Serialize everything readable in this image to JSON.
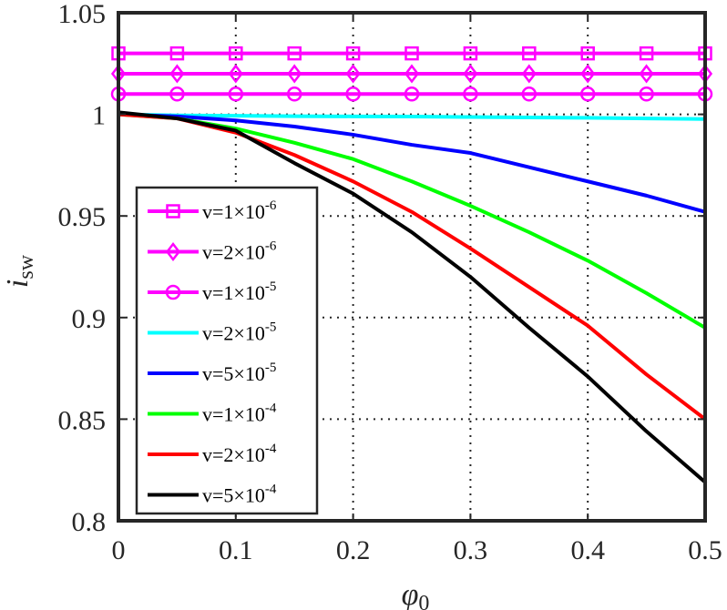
{
  "chart_data": {
    "type": "line",
    "title": "",
    "xlabel": "φ",
    "xlabel_sub": "0",
    "ylabel": "i",
    "ylabel_sub": "sw",
    "xlim": [
      0,
      0.5
    ],
    "ylim": [
      0.8,
      1.05
    ],
    "grid": true,
    "legend_position": "lower-left",
    "x_ticks": [
      0,
      0.1,
      0.2,
      0.3,
      0.4,
      0.5
    ],
    "x_tick_labels": [
      "0",
      "0.1",
      "0.2",
      "0.3",
      "0.4",
      "0.5"
    ],
    "y_ticks": [
      0.8,
      0.85,
      0.9,
      0.95,
      1.0,
      1.05
    ],
    "y_tick_labels": [
      "0.8",
      "0.85",
      "0.9",
      "0.95",
      "1",
      "1.05"
    ],
    "x": [
      0,
      0.05,
      0.1,
      0.15,
      0.2,
      0.25,
      0.3,
      0.35,
      0.4,
      0.45,
      0.5
    ],
    "series": [
      {
        "name": "v=1×10-6",
        "label_base": "v=1×10",
        "label_exp": "-6",
        "color": "#ff00ff",
        "marker": "square",
        "values": [
          1.03,
          1.03,
          1.03,
          1.03,
          1.03,
          1.03,
          1.03,
          1.03,
          1.03,
          1.03,
          1.03
        ]
      },
      {
        "name": "v=2×10-6",
        "label_base": "v=2×10",
        "label_exp": "-6",
        "color": "#ff00ff",
        "marker": "diamond",
        "values": [
          1.02,
          1.02,
          1.02,
          1.02,
          1.02,
          1.02,
          1.02,
          1.02,
          1.02,
          1.02,
          1.02
        ]
      },
      {
        "name": "v=1×10-5",
        "label_base": "v=1×10",
        "label_exp": "-5",
        "color": "#ff00ff",
        "marker": "circle",
        "values": [
          1.01,
          1.01,
          1.01,
          1.01,
          1.01,
          1.01,
          1.01,
          1.01,
          1.01,
          1.01,
          1.01
        ]
      },
      {
        "name": "v=2×10-5",
        "label_base": "v=2×10",
        "label_exp": "-5",
        "color": "#00ffff",
        "marker": "none",
        "values": [
          1.0,
          0.9995,
          0.9993,
          0.9991,
          0.999,
          0.9989,
          0.9987,
          0.9985,
          0.9983,
          0.998,
          0.9977
        ]
      },
      {
        "name": "v=5×10-5",
        "label_base": "v=5×10",
        "label_exp": "-5",
        "color": "#0000ff",
        "marker": "none",
        "values": [
          1.0,
          0.999,
          0.997,
          0.994,
          0.99,
          0.985,
          0.981,
          0.974,
          0.967,
          0.96,
          0.952
        ]
      },
      {
        "name": "v=1×10-4",
        "label_base": "v=1×10",
        "label_exp": "-4",
        "color": "#00ff00",
        "marker": "none",
        "values": [
          1.0,
          0.998,
          0.993,
          0.986,
          0.978,
          0.967,
          0.955,
          0.942,
          0.928,
          0.912,
          0.895
        ]
      },
      {
        "name": "v=2×10-4",
        "label_base": "v=2×10",
        "label_exp": "-4",
        "color": "#ff0000",
        "marker": "none",
        "values": [
          1.0,
          0.998,
          0.991,
          0.98,
          0.967,
          0.952,
          0.934,
          0.915,
          0.896,
          0.872,
          0.85
        ]
      },
      {
        "name": "v=5×10-4",
        "label_base": "v=5×10",
        "label_exp": "-4",
        "color": "#000000",
        "marker": "none",
        "values": [
          1.001,
          0.998,
          0.992,
          0.976,
          0.961,
          0.942,
          0.92,
          0.895,
          0.871,
          0.844,
          0.819
        ]
      }
    ]
  }
}
